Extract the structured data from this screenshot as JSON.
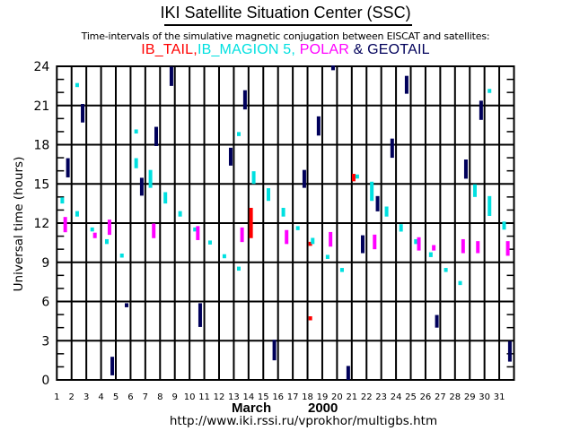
{
  "header": {
    "title": "IKI Satellite Situation Center (SSC)",
    "subtitle": "Time-intervals of the simulative magnetic conjugation between EISCAT and satellites:"
  },
  "legend": [
    {
      "label": "IB_TAIL,",
      "color": "#ff0000"
    },
    {
      "label": "IB_MAGION 5,",
      "color": "#00e0e0"
    },
    {
      "label": "POLAR",
      "color": "#ff00ff"
    },
    {
      "label": "&",
      "color": "#00005a"
    },
    {
      "label": "GEOTAIL",
      "color": "#00005a"
    }
  ],
  "footer": {
    "month": "March",
    "year": "2000",
    "url": "http://www.iki.rssi.ru/vprokhor/multigbs.htm"
  },
  "chart_data": {
    "type": "interval-scatter",
    "title": "IKI Satellite Situation Center (SSC)",
    "xlabel": "March 2000",
    "ylabel": "Universal time (hours)",
    "xlim": [
      1,
      32
    ],
    "ylim": [
      0,
      24
    ],
    "x_ticks": [
      "1",
      "2",
      "3",
      "4",
      "5",
      "6",
      "7",
      "8",
      "9",
      "10",
      "11",
      "12",
      "13",
      "14",
      "15",
      "16",
      "17",
      "18",
      "19",
      "20",
      "21",
      "22",
      "23",
      "24",
      "25",
      "26",
      "27",
      "28",
      "29",
      "30",
      "31"
    ],
    "y_ticks": [
      "0",
      "3",
      "6",
      "9",
      "12",
      "15",
      "18",
      "21",
      "24"
    ],
    "grid": true,
    "series": [
      {
        "name": "IB_TAIL",
        "color": "#ff0000",
        "intervals": [
          {
            "day": 14.17,
            "start": 10.85,
            "end": 13.1
          },
          {
            "day": 18.19,
            "start": 10.5,
            "end": 10.5
          },
          {
            "day": 18.19,
            "start": 4.8,
            "end": 4.8
          },
          {
            "day": 21.13,
            "start": 15.2,
            "end": 15.7
          }
        ]
      },
      {
        "name": "IB_MAGION 5",
        "color": "#00e0e0",
        "intervals": [
          {
            "day": 1.37,
            "start": 13.5,
            "end": 13.9
          },
          {
            "day": 2.38,
            "start": 22.65,
            "end": 22.65
          },
          {
            "day": 2.38,
            "start": 12.5,
            "end": 12.85
          },
          {
            "day": 3.4,
            "start": 11.6,
            "end": 11.6
          },
          {
            "day": 4.39,
            "start": 10.4,
            "end": 10.7
          },
          {
            "day": 5.41,
            "start": 9.6,
            "end": 9.6
          },
          {
            "day": 6.38,
            "start": 19.1,
            "end": 19.1
          },
          {
            "day": 6.38,
            "start": 16.2,
            "end": 16.9
          },
          {
            "day": 7.35,
            "start": 14.7,
            "end": 16.0
          },
          {
            "day": 8.36,
            "start": 13.5,
            "end": 14.3
          },
          {
            "day": 9.36,
            "start": 12.5,
            "end": 12.85
          },
          {
            "day": 10.37,
            "start": 11.6,
            "end": 11.6
          },
          {
            "day": 11.39,
            "start": 10.6,
            "end": 10.6
          },
          {
            "day": 12.36,
            "start": 9.55,
            "end": 9.55
          },
          {
            "day": 13.34,
            "start": 8.6,
            "end": 8.6
          },
          {
            "day": 13.34,
            "start": 18.9,
            "end": 18.9
          },
          {
            "day": 14.35,
            "start": 15.0,
            "end": 15.9
          },
          {
            "day": 15.35,
            "start": 13.7,
            "end": 14.6
          },
          {
            "day": 16.36,
            "start": 12.5,
            "end": 13.1
          },
          {
            "day": 17.34,
            "start": 11.7,
            "end": 11.7
          },
          {
            "day": 18.35,
            "start": 10.4,
            "end": 10.8
          },
          {
            "day": 19.36,
            "start": 9.5,
            "end": 9.5
          },
          {
            "day": 20.34,
            "start": 8.5,
            "end": 8.5
          },
          {
            "day": 21.37,
            "start": 15.65,
            "end": 15.65
          },
          {
            "day": 22.36,
            "start": 13.7,
            "end": 15.1
          },
          {
            "day": 23.36,
            "start": 12.5,
            "end": 13.2
          },
          {
            "day": 24.34,
            "start": 11.35,
            "end": 11.85
          },
          {
            "day": 25.35,
            "start": 10.4,
            "end": 10.7
          },
          {
            "day": 26.36,
            "start": 9.4,
            "end": 9.7
          },
          {
            "day": 27.38,
            "start": 8.5,
            "end": 8.5
          },
          {
            "day": 28.35,
            "start": 7.5,
            "end": 7.5
          },
          {
            "day": 29.35,
            "start": 14.0,
            "end": 14.9
          },
          {
            "day": 30.34,
            "start": 22.2,
            "end": 22.2
          },
          {
            "day": 30.34,
            "start": 12.55,
            "end": 14.0
          },
          {
            "day": 31.33,
            "start": 11.5,
            "end": 12.05
          }
        ]
      },
      {
        "name": "POLAR",
        "color": "#ff00ff",
        "intervals": [
          {
            "day": 1.57,
            "start": 11.3,
            "end": 12.4
          },
          {
            "day": 3.58,
            "start": 10.85,
            "end": 11.2
          },
          {
            "day": 4.57,
            "start": 11.1,
            "end": 12.2
          },
          {
            "day": 7.57,
            "start": 10.85,
            "end": 11.9
          },
          {
            "day": 10.56,
            "start": 10.7,
            "end": 11.7
          },
          {
            "day": 13.56,
            "start": 10.55,
            "end": 11.6
          },
          {
            "day": 16.58,
            "start": 10.4,
            "end": 11.4
          },
          {
            "day": 19.56,
            "start": 10.2,
            "end": 11.25
          },
          {
            "day": 22.55,
            "start": 10.0,
            "end": 11.05
          },
          {
            "day": 25.55,
            "start": 9.9,
            "end": 10.85
          },
          {
            "day": 26.56,
            "start": 9.9,
            "end": 10.25
          },
          {
            "day": 28.55,
            "start": 9.7,
            "end": 10.7
          },
          {
            "day": 29.55,
            "start": 9.7,
            "end": 10.55
          },
          {
            "day": 31.58,
            "start": 9.5,
            "end": 10.55
          }
        ]
      },
      {
        "name": "GEOTAIL",
        "color": "#00005a",
        "intervals": [
          {
            "day": 1.75,
            "start": 15.5,
            "end": 16.9
          },
          {
            "day": 2.75,
            "start": 19.7,
            "end": 21.05
          },
          {
            "day": 4.76,
            "start": 0.35,
            "end": 1.7
          },
          {
            "day": 5.73,
            "start": 5.8,
            "end": 5.8
          },
          {
            "day": 6.76,
            "start": 14.1,
            "end": 15.4
          },
          {
            "day": 7.74,
            "start": 17.9,
            "end": 19.3
          },
          {
            "day": 8.77,
            "start": 22.5,
            "end": 23.9
          },
          {
            "day": 10.72,
            "start": 4.05,
            "end": 5.8
          },
          {
            "day": 12.79,
            "start": 16.4,
            "end": 17.7
          },
          {
            "day": 13.76,
            "start": 20.7,
            "end": 22.1
          },
          {
            "day": 15.75,
            "start": 1.5,
            "end": 3.0
          },
          {
            "day": 17.78,
            "start": 14.7,
            "end": 16.0
          },
          {
            "day": 18.75,
            "start": 18.7,
            "end": 20.1
          },
          {
            "day": 19.73,
            "start": 23.7,
            "end": 24.0
          },
          {
            "day": 20.76,
            "start": 0.0,
            "end": 1.0
          },
          {
            "day": 21.74,
            "start": 9.7,
            "end": 11.0
          },
          {
            "day": 22.75,
            "start": 12.9,
            "end": 14.0
          },
          {
            "day": 23.74,
            "start": 17.0,
            "end": 18.4
          },
          {
            "day": 24.72,
            "start": 21.9,
            "end": 23.2
          },
          {
            "day": 26.77,
            "start": 4.0,
            "end": 4.9
          },
          {
            "day": 28.74,
            "start": 15.4,
            "end": 16.8
          },
          {
            "day": 29.77,
            "start": 19.9,
            "end": 21.3
          },
          {
            "day": 31.72,
            "start": 1.4,
            "end": 2.9
          }
        ]
      }
    ]
  }
}
